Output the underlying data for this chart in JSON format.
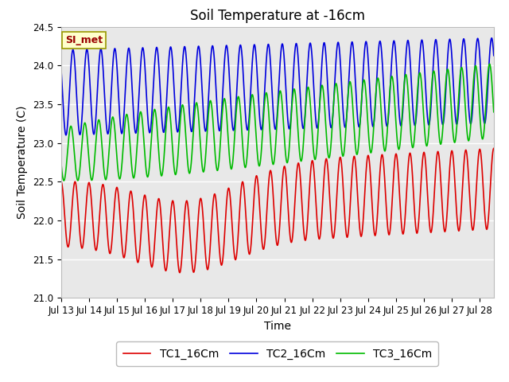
{
  "title": "Soil Temperature at -16cm",
  "xlabel": "Time",
  "ylabel": "Soil Temperature (C)",
  "ylim": [
    21.0,
    24.5
  ],
  "yticks": [
    21.0,
    21.5,
    22.0,
    22.5,
    23.0,
    23.5,
    24.0,
    24.5
  ],
  "background_color": "#ffffff",
  "plot_bg_color": "#e8e8e8",
  "grid_color": "#ffffff",
  "annotation_text": "SI_met",
  "annotation_bg": "#ffffcc",
  "annotation_border": "#999900",
  "annotation_fg": "#990000",
  "series": [
    {
      "label": "TC1_16Cm",
      "color": "#dd0000"
    },
    {
      "label": "TC2_16Cm",
      "color": "#0000dd"
    },
    {
      "label": "TC3_16Cm",
      "color": "#00bb00"
    }
  ],
  "xlim": [
    0,
    15.5
  ],
  "title_fontsize": 12,
  "axis_label_fontsize": 10,
  "tick_fontsize": 8.5,
  "legend_fontsize": 10
}
